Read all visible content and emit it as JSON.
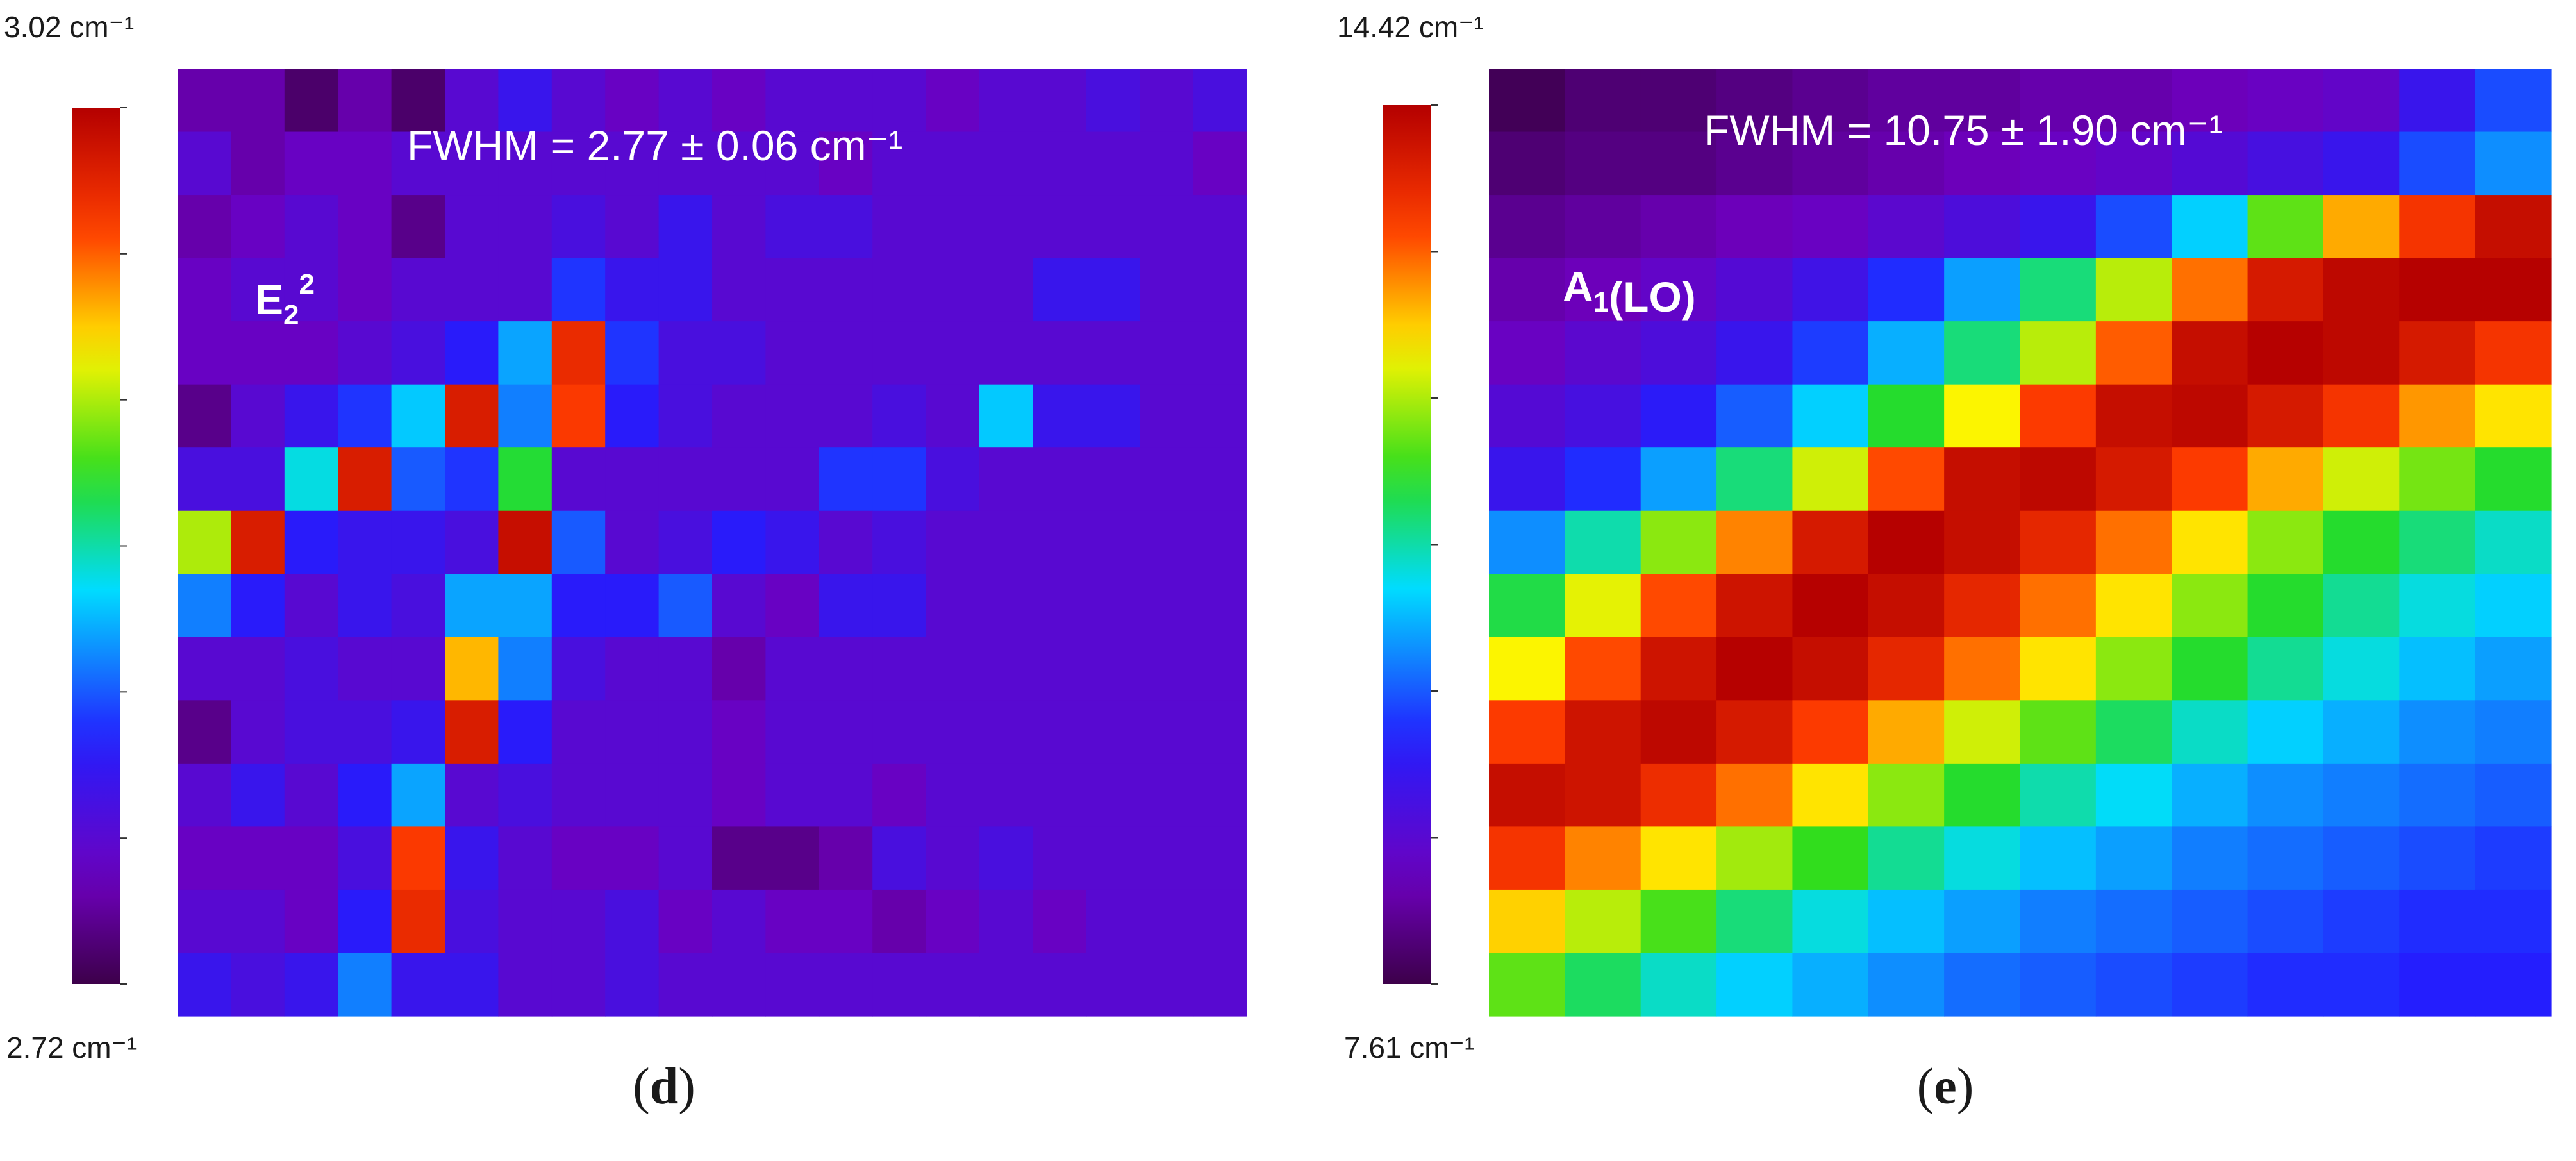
{
  "chart_data": [
    {
      "type": "heatmap",
      "panel_label": "d",
      "mode": "E22",
      "mode_base": "E",
      "mode_sub": "2",
      "mode_sup": "2",
      "annotation": "FWHM = 2.77 ± 0.06 cm⁻¹",
      "colorbar_max": "3.02 cm⁻¹",
      "colorbar_min": "2.72 cm⁻¹",
      "vmin": 2.72,
      "vmax": 3.02,
      "unit": "cm⁻¹",
      "colormap": "rainbow (violet-blue-cyan-green-yellow-red)",
      "grid": [
        [
          2.75,
          2.75,
          2.73,
          2.75,
          2.73,
          2.77,
          2.79,
          2.77,
          2.76,
          2.77,
          2.76,
          2.77,
          2.77,
          2.77,
          2.76,
          2.77,
          2.77,
          2.78,
          2.77,
          2.78
        ],
        [
          2.77,
          2.75,
          2.76,
          2.76,
          2.77,
          2.77,
          2.77,
          2.77,
          2.77,
          2.77,
          2.77,
          2.77,
          2.76,
          2.77,
          2.77,
          2.77,
          2.77,
          2.77,
          2.77,
          2.76
        ],
        [
          2.75,
          2.76,
          2.77,
          2.76,
          2.74,
          2.77,
          2.77,
          2.78,
          2.77,
          2.79,
          2.77,
          2.78,
          2.78,
          2.77,
          2.77,
          2.77,
          2.77,
          2.77,
          2.77,
          2.77
        ],
        [
          2.76,
          2.77,
          2.77,
          2.76,
          2.77,
          2.77,
          2.77,
          2.81,
          2.79,
          2.79,
          2.77,
          2.77,
          2.77,
          2.77,
          2.77,
          2.77,
          2.79,
          2.79,
          2.77,
          2.77
        ],
        [
          2.76,
          2.76,
          2.76,
          2.77,
          2.78,
          2.8,
          2.84,
          2.99,
          2.81,
          2.78,
          2.78,
          2.77,
          2.77,
          2.77,
          2.77,
          2.77,
          2.77,
          2.77,
          2.77,
          2.77
        ],
        [
          2.74,
          2.77,
          2.79,
          2.81,
          2.85,
          3.0,
          2.83,
          2.98,
          2.8,
          2.78,
          2.77,
          2.77,
          2.77,
          2.78,
          2.77,
          2.85,
          2.79,
          2.79,
          2.77,
          2.77
        ],
        [
          2.78,
          2.78,
          2.86,
          3.0,
          2.82,
          2.81,
          2.89,
          2.77,
          2.77,
          2.77,
          2.77,
          2.77,
          2.81,
          2.81,
          2.78,
          2.77,
          2.77,
          2.77,
          2.77,
          2.77
        ],
        [
          2.92,
          3.0,
          2.8,
          2.79,
          2.79,
          2.78,
          3.01,
          2.82,
          2.77,
          2.78,
          2.8,
          2.79,
          2.77,
          2.78,
          2.77,
          2.77,
          2.77,
          2.77,
          2.77,
          2.77
        ],
        [
          2.83,
          2.8,
          2.77,
          2.79,
          2.78,
          2.84,
          2.84,
          2.8,
          2.8,
          2.82,
          2.77,
          2.76,
          2.79,
          2.79,
          2.77,
          2.77,
          2.77,
          2.77,
          2.77,
          2.77
        ],
        [
          2.77,
          2.77,
          2.78,
          2.77,
          2.77,
          2.95,
          2.83,
          2.78,
          2.77,
          2.77,
          2.75,
          2.77,
          2.77,
          2.77,
          2.77,
          2.77,
          2.77,
          2.77,
          2.77,
          2.77
        ],
        [
          2.74,
          2.77,
          2.78,
          2.78,
          2.79,
          3.0,
          2.8,
          2.77,
          2.77,
          2.77,
          2.76,
          2.77,
          2.77,
          2.77,
          2.77,
          2.77,
          2.77,
          2.77,
          2.77,
          2.77
        ],
        [
          2.77,
          2.79,
          2.77,
          2.8,
          2.84,
          2.77,
          2.78,
          2.77,
          2.77,
          2.77,
          2.76,
          2.77,
          2.77,
          2.76,
          2.77,
          2.77,
          2.77,
          2.77,
          2.77,
          2.77
        ],
        [
          2.76,
          2.76,
          2.76,
          2.78,
          2.98,
          2.79,
          2.77,
          2.76,
          2.76,
          2.77,
          2.74,
          2.74,
          2.75,
          2.78,
          2.77,
          2.78,
          2.77,
          2.77,
          2.77,
          2.77
        ],
        [
          2.77,
          2.77,
          2.76,
          2.8,
          2.99,
          2.78,
          2.77,
          2.77,
          2.78,
          2.76,
          2.77,
          2.76,
          2.76,
          2.75,
          2.76,
          2.77,
          2.76,
          2.77,
          2.77,
          2.77
        ],
        [
          2.79,
          2.78,
          2.79,
          2.83,
          2.79,
          2.79,
          2.77,
          2.77,
          2.78,
          2.77,
          2.77,
          2.77,
          2.77,
          2.77,
          2.77,
          2.77,
          2.77,
          2.77,
          2.77,
          2.77
        ]
      ]
    },
    {
      "type": "heatmap",
      "panel_label": "e",
      "mode": "A1(LO)",
      "mode_base": "A",
      "mode_sub": "1",
      "mode_tail": "(LO)",
      "annotation": "FWHM = 10.75 ± 1.90 cm⁻¹",
      "colorbar_max": "14.42 cm⁻¹",
      "colorbar_min": "7.61 cm⁻¹",
      "vmin": 7.61,
      "vmax": 14.42,
      "unit": "cm⁻¹",
      "colormap": "rainbow (violet-blue-cyan-green-yellow-red)",
      "grid": [
        [
          7.7,
          7.9,
          7.9,
          8.0,
          8.1,
          8.2,
          8.2,
          8.3,
          8.3,
          8.4,
          8.5,
          8.6,
          9.2,
          9.8
        ],
        [
          7.9,
          8.0,
          8.0,
          8.1,
          8.2,
          8.3,
          8.4,
          8.5,
          8.6,
          8.8,
          9.0,
          9.2,
          9.8,
          10.2
        ],
        [
          8.1,
          8.2,
          8.3,
          8.4,
          8.5,
          8.7,
          8.9,
          9.2,
          9.8,
          10.6,
          11.8,
          12.9,
          13.6,
          14.2
        ],
        [
          8.3,
          8.4,
          8.6,
          8.8,
          9.1,
          9.6,
          10.3,
          11.2,
          12.2,
          13.2,
          14.0,
          14.3,
          14.4,
          14.4
        ],
        [
          8.5,
          8.7,
          8.9,
          9.2,
          9.7,
          10.4,
          11.2,
          12.2,
          13.3,
          14.2,
          14.4,
          14.3,
          14.0,
          13.6
        ],
        [
          8.8,
          9.0,
          9.4,
          9.9,
          10.6,
          11.5,
          12.5,
          13.5,
          14.2,
          14.3,
          14.0,
          13.6,
          13.0,
          12.6
        ],
        [
          9.2,
          9.6,
          10.3,
          11.2,
          12.3,
          13.4,
          14.2,
          14.3,
          14.0,
          13.5,
          12.9,
          12.3,
          11.9,
          11.5
        ],
        [
          10.2,
          11.0,
          12.0,
          13.1,
          14.0,
          14.4,
          14.2,
          13.8,
          13.2,
          12.6,
          12.0,
          11.5,
          11.2,
          10.9
        ],
        [
          11.4,
          12.4,
          13.4,
          14.1,
          14.4,
          14.2,
          13.8,
          13.2,
          12.6,
          12.0,
          11.5,
          11.1,
          10.8,
          10.6
        ],
        [
          12.5,
          13.4,
          14.1,
          14.4,
          14.2,
          13.8,
          13.2,
          12.6,
          12.0,
          11.5,
          11.1,
          10.8,
          10.5,
          10.3
        ],
        [
          13.5,
          14.1,
          14.3,
          14.0,
          13.5,
          12.9,
          12.3,
          11.8,
          11.3,
          10.9,
          10.6,
          10.4,
          10.2,
          10.1
        ],
        [
          14.2,
          14.1,
          13.7,
          13.2,
          12.6,
          12.0,
          11.5,
          11.0,
          10.7,
          10.4,
          10.2,
          10.1,
          10.0,
          9.9
        ],
        [
          13.6,
          13.1,
          12.6,
          12.1,
          11.6,
          11.1,
          10.8,
          10.5,
          10.3,
          10.1,
          10.0,
          9.9,
          9.8,
          9.7
        ],
        [
          12.7,
          12.2,
          11.7,
          11.2,
          10.8,
          10.5,
          10.3,
          10.1,
          10.0,
          9.9,
          9.8,
          9.7,
          9.6,
          9.6
        ],
        [
          11.8,
          11.3,
          10.9,
          10.6,
          10.4,
          10.2,
          10.0,
          9.9,
          9.8,
          9.7,
          9.6,
          9.6,
          9.5,
          9.5
        ]
      ]
    }
  ]
}
